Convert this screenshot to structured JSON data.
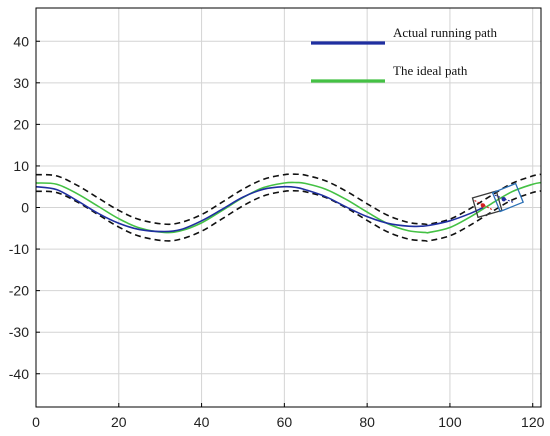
{
  "chart_data": {
    "type": "line",
    "title": "",
    "xlabel": "",
    "ylabel": "",
    "xlim": [
      0,
      122
    ],
    "ylim": [
      -48,
      48
    ],
    "x_ticks": [
      0,
      20,
      40,
      60,
      80,
      100,
      120
    ],
    "y_ticks": [
      40,
      30,
      20,
      10,
      0,
      -10,
      -20,
      -30,
      -40
    ],
    "grid": true,
    "legend_position": "top-right",
    "series": [
      {
        "name": "Actual running path",
        "color": "#1f2fa0",
        "style": "solid",
        "x": [
          0,
          5,
          10,
          15,
          20,
          25,
          31,
          35,
          40,
          45,
          50,
          55,
          60,
          63,
          65,
          70,
          75,
          80,
          85,
          90,
          93,
          95,
          100,
          105,
          108
        ],
        "y": [
          5.0,
          4.3,
          1.6,
          -1.4,
          -3.8,
          -5.3,
          -5.8,
          -5.3,
          -3.2,
          -0.4,
          2.5,
          4.4,
          5.0,
          4.8,
          4.3,
          2.6,
          0.1,
          -2.2,
          -3.8,
          -4.5,
          -4.5,
          -4.3,
          -3.2,
          -1.4,
          0.0
        ]
      },
      {
        "name": "The ideal path",
        "color": "#44c144",
        "style": "solid",
        "x": [
          0,
          5,
          10,
          15,
          20,
          25,
          31,
          35,
          40,
          45,
          50,
          55,
          60,
          63,
          65,
          70,
          75,
          80,
          85,
          90,
          94,
          95,
          100,
          105,
          110,
          115,
          120,
          122
        ],
        "y": [
          5.9,
          5.6,
          3.3,
          0.3,
          -2.7,
          -4.9,
          -6.0,
          -5.6,
          -3.7,
          -0.7,
          2.4,
          4.8,
          5.9,
          6.0,
          5.8,
          4.4,
          1.9,
          -1.1,
          -3.9,
          -5.6,
          -6.0,
          -6.0,
          -4.8,
          -2.2,
          0.9,
          3.8,
          5.6,
          6.0
        ]
      },
      {
        "name": "",
        "color": "#111111",
        "style": "dashed",
        "x": [
          0,
          5,
          10,
          15,
          20,
          25,
          31,
          35,
          40,
          45,
          50,
          55,
          60,
          63,
          65,
          70,
          75,
          80,
          85,
          90,
          94,
          95,
          100,
          105,
          110,
          115,
          120,
          122
        ],
        "y": [
          7.9,
          7.6,
          5.3,
          2.3,
          -0.7,
          -2.9,
          -4.0,
          -3.6,
          -1.7,
          1.3,
          4.4,
          6.8,
          7.9,
          8.0,
          7.8,
          6.4,
          3.9,
          0.9,
          -1.9,
          -3.6,
          -4.0,
          -4.0,
          -2.8,
          -0.2,
          2.9,
          5.8,
          7.6,
          8.0
        ]
      },
      {
        "name": "",
        "color": "#111111",
        "style": "dashed",
        "x": [
          0,
          5,
          10,
          15,
          20,
          25,
          31,
          35,
          40,
          45,
          50,
          55,
          60,
          63,
          65,
          70,
          75,
          80,
          85,
          90,
          94,
          95,
          100,
          105,
          110,
          115,
          120,
          122
        ],
        "y": [
          3.9,
          3.6,
          1.3,
          -1.7,
          -4.7,
          -6.9,
          -8.0,
          -7.6,
          -5.7,
          -2.7,
          0.4,
          2.8,
          3.9,
          4.0,
          3.8,
          2.4,
          -0.1,
          -3.1,
          -5.9,
          -7.6,
          -8.0,
          -8.0,
          -6.8,
          -4.2,
          -1.1,
          1.8,
          3.6,
          4.0
        ]
      }
    ],
    "vehicles": [
      {
        "x": 109,
        "y": 0.8,
        "angle_deg": 16,
        "length": 6,
        "width": 2.2,
        "color": "#3a3a3a",
        "marker_color": "#d22020"
      },
      {
        "x": 114,
        "y": 2.4,
        "angle_deg": 22,
        "length": 6,
        "width": 2.2,
        "color": "#2a6fb5",
        "marker_color": "#1f2fa0"
      }
    ]
  }
}
